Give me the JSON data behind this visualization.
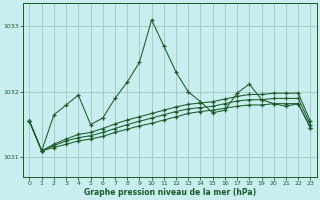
{
  "xlabel": "Graphe pression niveau de la mer (hPa)",
  "bg_color": "#c8eef0",
  "grid_color": "#9bbfb5",
  "line_color": "#1a5c28",
  "ylim": [
    1030.7,
    1033.35
  ],
  "yticks": [
    1031,
    1032,
    1033
  ],
  "xlim": [
    -0.5,
    23.5
  ],
  "xticks": [
    0,
    1,
    2,
    3,
    4,
    5,
    6,
    7,
    8,
    9,
    10,
    11,
    12,
    13,
    14,
    15,
    16,
    17,
    18,
    19,
    20,
    21,
    22,
    23
  ],
  "spike": [
    1031.55,
    1031.1,
    1031.65,
    1031.8,
    1031.95,
    1031.5,
    1031.6,
    1031.9,
    1032.15,
    1032.45,
    1033.1,
    1032.7,
    1032.3,
    1032.0,
    1031.85,
    1031.68,
    1031.72,
    1031.98,
    1032.12,
    1031.88,
    1031.82,
    1031.78,
    1031.82,
    1031.45
  ],
  "line1": [
    1031.55,
    1031.1,
    1031.15,
    1031.2,
    1031.25,
    1031.28,
    1031.32,
    1031.38,
    1031.43,
    1031.48,
    1031.52,
    1031.57,
    1031.62,
    1031.67,
    1031.7,
    1031.72,
    1031.75,
    1031.78,
    1031.8,
    1031.8,
    1031.82,
    1031.82,
    1031.82,
    1031.45
  ],
  "line2": [
    1031.55,
    1031.1,
    1031.18,
    1031.25,
    1031.3,
    1031.33,
    1031.38,
    1031.44,
    1031.5,
    1031.55,
    1031.6,
    1031.65,
    1031.7,
    1031.74,
    1031.76,
    1031.78,
    1031.82,
    1031.86,
    1031.88,
    1031.88,
    1031.9,
    1031.9,
    1031.9,
    1031.5
  ],
  "line3": [
    1031.55,
    1031.1,
    1031.2,
    1031.28,
    1031.35,
    1031.38,
    1031.44,
    1031.51,
    1031.57,
    1031.62,
    1031.67,
    1031.72,
    1031.77,
    1031.81,
    1031.83,
    1031.85,
    1031.89,
    1031.93,
    1031.96,
    1031.96,
    1031.98,
    1031.98,
    1031.98,
    1031.55
  ]
}
